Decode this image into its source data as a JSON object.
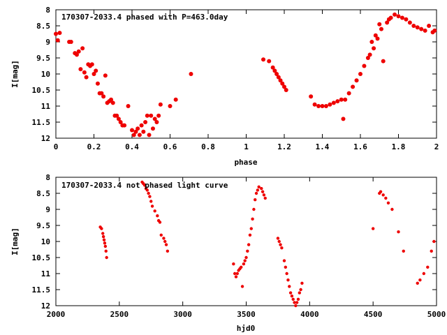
{
  "chart_data": [
    {
      "type": "scatter",
      "title": "170307-2033.4 phased with P=463.0day",
      "xlabel": "phase",
      "ylabel": "I[mag]",
      "xlim": [
        0,
        2
      ],
      "ylim": [
        8,
        12
      ],
      "y_inverted": true,
      "xticks": [
        "0",
        "0.2",
        "0.4",
        "0.6",
        "0.8",
        "1",
        "1.2",
        "1.4",
        "1.6",
        "1.8",
        "2"
      ],
      "yticks": [
        "8",
        "8.5",
        "9",
        "9.5",
        "10",
        "10.5",
        "11",
        "11.5",
        "12"
      ],
      "grid": false,
      "color": "#ee0000",
      "x": [
        0.0,
        0.01,
        0.02,
        0.07,
        0.08,
        0.1,
        0.11,
        0.12,
        0.13,
        0.14,
        0.15,
        0.16,
        0.17,
        0.18,
        0.19,
        0.2,
        0.21,
        0.22,
        0.23,
        0.24,
        0.25,
        0.26,
        0.27,
        0.28,
        0.29,
        0.3,
        0.31,
        0.32,
        0.33,
        0.34,
        0.35,
        0.36,
        0.38,
        0.4,
        0.41,
        0.42,
        0.43,
        0.44,
        0.45,
        0.46,
        0.47,
        0.48,
        0.49,
        0.5,
        0.51,
        0.52,
        0.53,
        0.54,
        0.55,
        0.6,
        0.63,
        0.71,
        1.09,
        1.12,
        1.14,
        1.15,
        1.16,
        1.17,
        1.18,
        1.19,
        1.2,
        1.21,
        1.34,
        1.36,
        1.38,
        1.4,
        1.42,
        1.44,
        1.46,
        1.48,
        1.5,
        1.51,
        1.52,
        1.54,
        1.56,
        1.58,
        1.6,
        1.62,
        1.64,
        1.65,
        1.66,
        1.67,
        1.68,
        1.69,
        1.7,
        1.71,
        1.72,
        1.74,
        1.75,
        1.76,
        1.78,
        1.8,
        1.82,
        1.84,
        1.86,
        1.88,
        1.9,
        1.92,
        1.94,
        1.96,
        1.98,
        1.99
      ],
      "y": [
        8.75,
        8.95,
        8.72,
        9.0,
        9.0,
        9.35,
        9.4,
        9.3,
        9.85,
        9.2,
        9.95,
        10.1,
        9.7,
        9.75,
        9.7,
        10.0,
        9.9,
        10.3,
        10.6,
        10.6,
        10.7,
        10.05,
        10.9,
        10.85,
        10.8,
        10.9,
        11.3,
        11.3,
        11.4,
        11.5,
        11.6,
        11.6,
        11.0,
        11.75,
        11.9,
        11.8,
        11.7,
        11.9,
        11.6,
        11.8,
        11.5,
        11.3,
        11.9,
        11.3,
        11.7,
        11.4,
        11.5,
        11.3,
        10.95,
        11.0,
        10.8,
        10.0,
        9.55,
        9.6,
        9.8,
        9.9,
        10.0,
        10.1,
        10.2,
        10.3,
        10.4,
        10.5,
        10.7,
        10.95,
        11.0,
        11.0,
        11.0,
        10.95,
        10.9,
        10.85,
        10.8,
        11.4,
        10.8,
        10.6,
        10.4,
        10.2,
        10.0,
        9.75,
        9.5,
        9.4,
        9.0,
        9.2,
        8.8,
        8.9,
        8.45,
        8.6,
        9.6,
        8.4,
        8.3,
        8.25,
        8.15,
        8.2,
        8.25,
        8.3,
        8.4,
        8.5,
        8.55,
        8.6,
        8.65,
        8.5,
        8.7,
        8.65
      ]
    },
    {
      "type": "scatter",
      "title": "170307-2033.4 not phased light curve",
      "xlabel": "hjd0",
      "ylabel": "I[mag]",
      "xlim": [
        2000,
        5000
      ],
      "ylim": [
        8,
        12
      ],
      "y_inverted": true,
      "xticks": [
        "2000",
        "2500",
        "3000",
        "3500",
        "4000",
        "4500",
        "5000"
      ],
      "yticks": [
        "8",
        "8.5",
        "9",
        "9.5",
        "10",
        "10.5",
        "11",
        "11.5",
        "12"
      ],
      "grid": false,
      "color": "#ee0000",
      "x": [
        2350,
        2360,
        2370,
        2375,
        2380,
        2385,
        2390,
        2395,
        2400,
        2680,
        2690,
        2700,
        2710,
        2720,
        2730,
        2740,
        2750,
        2760,
        2780,
        2800,
        2810,
        2820,
        2830,
        2850,
        2860,
        2870,
        2880,
        3400,
        3410,
        3420,
        3430,
        3440,
        3450,
        3460,
        3470,
        3480,
        3490,
        3500,
        3510,
        3520,
        3530,
        3540,
        3550,
        3560,
        3570,
        3580,
        3590,
        3600,
        3620,
        3630,
        3640,
        3650,
        3750,
        3760,
        3770,
        3780,
        3800,
        3810,
        3820,
        3830,
        3840,
        3850,
        3860,
        3870,
        3880,
        3890,
        3900,
        3910,
        3920,
        3930,
        3940,
        4500,
        4550,
        4560,
        4580,
        4600,
        4620,
        4650,
        4700,
        4740,
        4850,
        4870,
        4900,
        4930,
        4960,
        4980
      ],
      "y": [
        9.55,
        9.6,
        9.75,
        9.85,
        9.95,
        10.05,
        10.15,
        10.3,
        10.5,
        8.15,
        8.2,
        8.25,
        8.35,
        8.4,
        8.5,
        8.6,
        8.75,
        8.9,
        9.05,
        9.2,
        9.35,
        9.4,
        9.8,
        9.9,
        10.0,
        10.1,
        10.3,
        10.7,
        11.0,
        11.1,
        11.0,
        10.9,
        10.85,
        10.8,
        11.4,
        10.7,
        10.6,
        10.5,
        10.3,
        10.1,
        9.8,
        9.6,
        9.3,
        9.0,
        8.7,
        8.5,
        8.4,
        8.3,
        8.35,
        8.45,
        8.55,
        8.65,
        9.9,
        10.0,
        10.1,
        10.2,
        10.6,
        10.8,
        11.0,
        11.2,
        11.4,
        11.6,
        11.7,
        11.8,
        11.9,
        12.0,
        11.9,
        11.8,
        11.6,
        11.5,
        11.3,
        9.6,
        8.5,
        8.45,
        8.55,
        8.65,
        8.8,
        9.0,
        9.7,
        10.3,
        11.3,
        11.2,
        11.0,
        10.8,
        10.3,
        10.0
      ]
    }
  ]
}
